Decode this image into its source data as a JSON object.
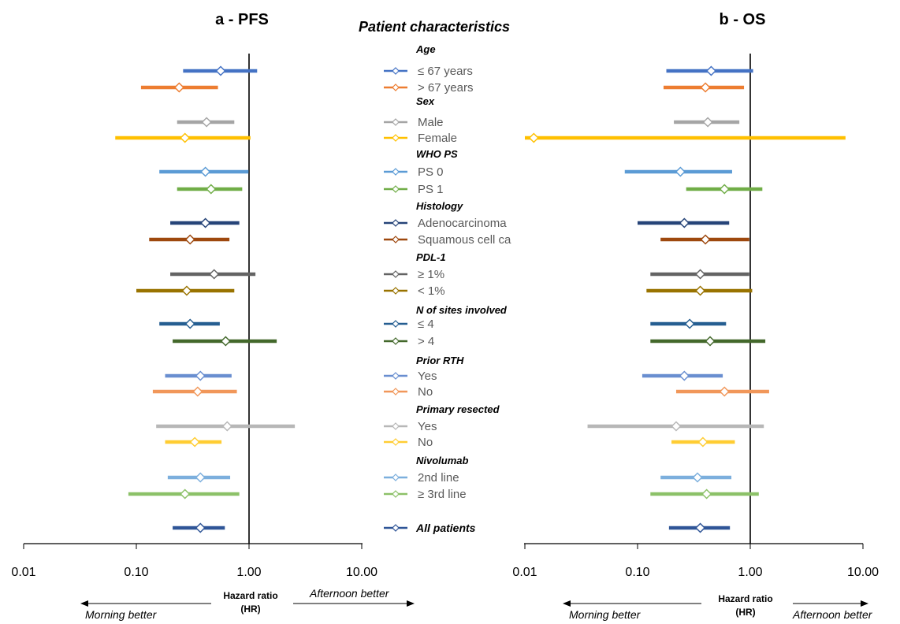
{
  "center_title": "Patient characteristics",
  "hr_label_line1": "Hazard ratio",
  "hr_label_line2": "(HR)",
  "morning_label": "Morning better",
  "afternoon_label": "Afternoon  better",
  "groups": [
    {
      "title": "Age",
      "rows": [
        {
          "label": "≤ 67 years",
          "color": "#4472C4"
        },
        {
          "label": "> 67 years",
          "color": "#ED7D31"
        }
      ]
    },
    {
      "title": "Sex",
      "rows": [
        {
          "label": "Male",
          "color": "#A5A5A5"
        },
        {
          "label": "Female",
          "color": "#FFC000"
        }
      ]
    },
    {
      "title": "WHO PS",
      "rows": [
        {
          "label": "PS 0",
          "color": "#5B9BD5"
        },
        {
          "label": "PS 1",
          "color": "#70AD47"
        }
      ]
    },
    {
      "title": "Histology",
      "rows": [
        {
          "label": "Adenocarcinoma",
          "color": "#264478"
        },
        {
          "label": "Squamous cell ca",
          "color": "#9E480E"
        }
      ]
    },
    {
      "title": "PDL-1",
      "rows": [
        {
          "label": "≥ 1%",
          "color": "#636363"
        },
        {
          "label": "< 1%",
          "color": "#997300"
        }
      ]
    },
    {
      "title": "N of sites involved",
      "rows": [
        {
          "label": "≤ 4",
          "color": "#255E91"
        },
        {
          "label": "> 4",
          "color": "#43682B"
        }
      ]
    },
    {
      "title": "Prior RTH",
      "rows": [
        {
          "label": "Yes",
          "color": "#698ED0"
        },
        {
          "label": "No",
          "color": "#F1975A"
        }
      ]
    },
    {
      "title": "Primary resected",
      "rows": [
        {
          "label": "Yes",
          "color": "#B7B7B7"
        },
        {
          "label": "No",
          "color": "#FFCD33"
        }
      ]
    },
    {
      "title": "Nivolumab",
      "rows": [
        {
          "label": "2nd line",
          "color": "#7CAFDD"
        },
        {
          "label": "≥ 3rd line",
          "color": "#8CC168"
        }
      ]
    }
  ],
  "all_patients": {
    "label": "All patients",
    "color": "#2F5597"
  },
  "chart_data": [
    {
      "type": "forest",
      "title": "a - PFS",
      "xlabel": "Hazard ratio (HR)",
      "xscale": "log",
      "xlim": [
        0.01,
        10
      ],
      "xticks": [
        "0.01",
        "0.10",
        "1.00",
        "10.00"
      ],
      "reference_line": 1,
      "rows": [
        {
          "label": "≤ 67 years",
          "hr": 0.56,
          "lo": 0.26,
          "hi": 1.18
        },
        {
          "label": "> 67 years",
          "hr": 0.24,
          "lo": 0.11,
          "hi": 0.53
        },
        {
          "label": "Male",
          "hr": 0.42,
          "lo": 0.23,
          "hi": 0.74
        },
        {
          "label": "Female",
          "hr": 0.27,
          "lo": 0.065,
          "hi": 1.03
        },
        {
          "label": "PS 0",
          "hr": 0.41,
          "lo": 0.16,
          "hi": 0.99
        },
        {
          "label": "PS 1",
          "hr": 0.46,
          "lo": 0.23,
          "hi": 0.87
        },
        {
          "label": "Adenocarcinoma",
          "hr": 0.41,
          "lo": 0.2,
          "hi": 0.82
        },
        {
          "label": "Squamous cell ca",
          "hr": 0.3,
          "lo": 0.13,
          "hi": 0.67
        },
        {
          "label": "≥ 1%",
          "hr": 0.49,
          "lo": 0.2,
          "hi": 1.14
        },
        {
          "label": "< 1%",
          "hr": 0.28,
          "lo": 0.1,
          "hi": 0.74
        },
        {
          "label": "≤ 4",
          "hr": 0.3,
          "lo": 0.16,
          "hi": 0.55
        },
        {
          "label": "> 4",
          "hr": 0.62,
          "lo": 0.21,
          "hi": 1.76
        },
        {
          "label": "Yes",
          "hr": 0.37,
          "lo": 0.18,
          "hi": 0.7
        },
        {
          "label": "No",
          "hr": 0.35,
          "lo": 0.14,
          "hi": 0.78
        },
        {
          "label": "Yes",
          "hr": 0.64,
          "lo": 0.15,
          "hi": 2.55
        },
        {
          "label": "No",
          "hr": 0.33,
          "lo": 0.18,
          "hi": 0.57
        },
        {
          "label": "2nd line",
          "hr": 0.37,
          "lo": 0.19,
          "hi": 0.68
        },
        {
          "label": "≥ 3rd line",
          "hr": 0.27,
          "lo": 0.085,
          "hi": 0.82
        },
        {
          "label": "All patients",
          "hr": 0.37,
          "lo": 0.21,
          "hi": 0.61
        }
      ]
    },
    {
      "type": "forest",
      "title": "b - OS",
      "xlabel": "Hazard ratio (HR)",
      "xscale": "log",
      "xlim": [
        0.01,
        10
      ],
      "xticks": [
        "0.01",
        "0.10",
        "1.00",
        "10.00"
      ],
      "reference_line": 1,
      "rows": [
        {
          "label": "≤ 67 years",
          "hr": 0.45,
          "lo": 0.18,
          "hi": 1.06
        },
        {
          "label": "> 67 years",
          "hr": 0.4,
          "lo": 0.17,
          "hi": 0.88
        },
        {
          "label": "Male",
          "hr": 0.42,
          "lo": 0.21,
          "hi": 0.8
        },
        {
          "label": "Female",
          "hr": 0.012,
          "lo": 0.01,
          "hi": 7.0
        },
        {
          "label": "PS 0",
          "hr": 0.24,
          "lo": 0.077,
          "hi": 0.69
        },
        {
          "label": "PS 1",
          "hr": 0.59,
          "lo": 0.27,
          "hi": 1.28
        },
        {
          "label": "Adenocarcinoma",
          "hr": 0.26,
          "lo": 0.1,
          "hi": 0.65
        },
        {
          "label": "Squamous cell ca",
          "hr": 0.4,
          "lo": 0.16,
          "hi": 0.98
        },
        {
          "label": "≥ 1%",
          "hr": 0.36,
          "lo": 0.13,
          "hi": 0.98
        },
        {
          "label": "< 1%",
          "hr": 0.36,
          "lo": 0.12,
          "hi": 1.04
        },
        {
          "label": "≤ 4",
          "hr": 0.29,
          "lo": 0.13,
          "hi": 0.61
        },
        {
          "label": "> 4",
          "hr": 0.44,
          "lo": 0.13,
          "hi": 1.36
        },
        {
          "label": "Yes",
          "hr": 0.26,
          "lo": 0.11,
          "hi": 0.57
        },
        {
          "label": "No",
          "hr": 0.59,
          "lo": 0.22,
          "hi": 1.47
        },
        {
          "label": "Yes",
          "hr": 0.22,
          "lo": 0.036,
          "hi": 1.32
        },
        {
          "label": "No",
          "hr": 0.38,
          "lo": 0.2,
          "hi": 0.73
        },
        {
          "label": "2nd line",
          "hr": 0.34,
          "lo": 0.16,
          "hi": 0.68
        },
        {
          "label": "≥ 3rd line",
          "hr": 0.41,
          "lo": 0.13,
          "hi": 1.19
        },
        {
          "label": "All patients",
          "hr": 0.36,
          "lo": 0.19,
          "hi": 0.66
        }
      ]
    }
  ]
}
